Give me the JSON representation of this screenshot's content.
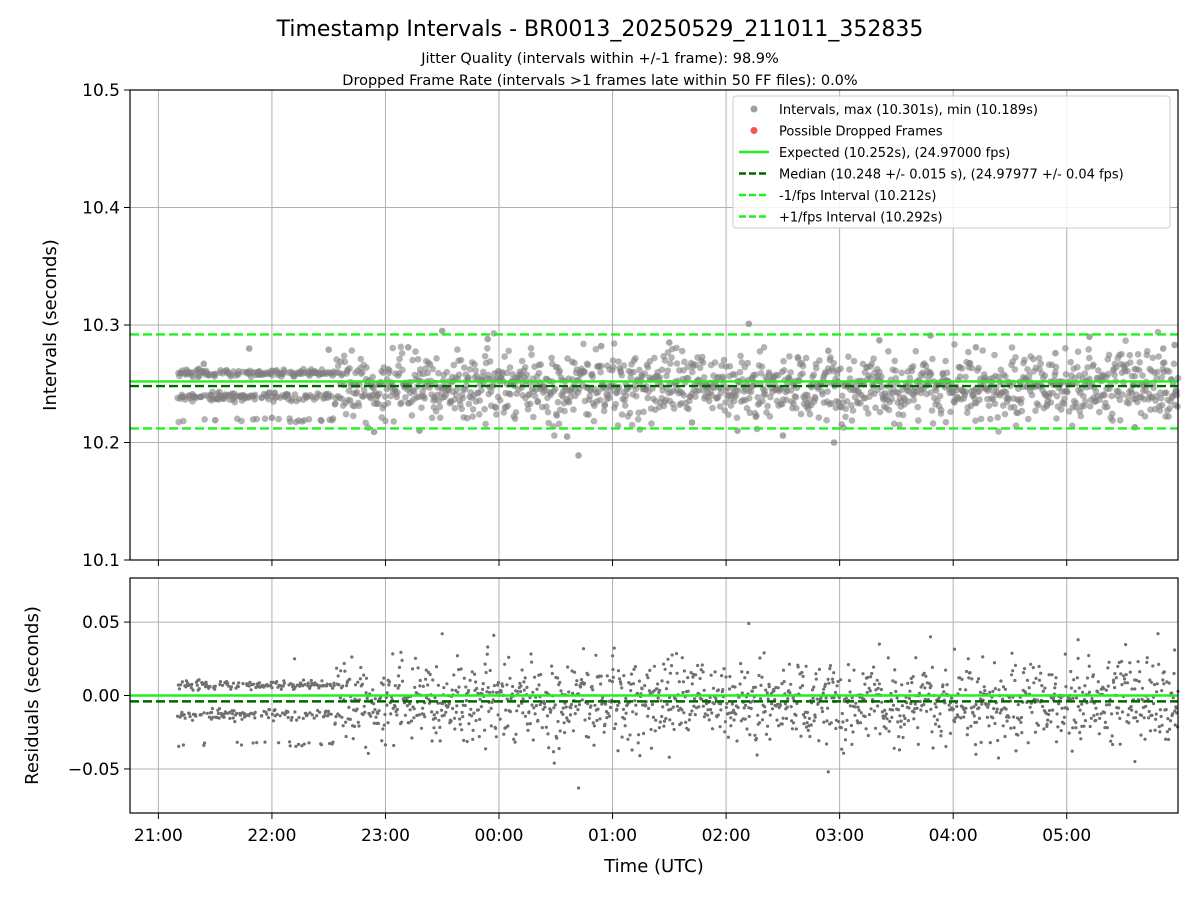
{
  "title": "Timestamp Intervals - BR0013_20250529_211011_352835",
  "subtitle_1": "Jitter Quality (intervals within +/-1 frame): 98.9%",
  "subtitle_2": "Dropped Frame Rate (intervals >1 frames late within 50 FF files): 0.0%",
  "colors": {
    "points": "#808080",
    "dropped": "#ee5555",
    "expected": "#22ee22",
    "median": "#006600",
    "interval_bounds": "#22ee22",
    "grid": "#b0b0b0"
  },
  "chart_data": [
    {
      "type": "scatter",
      "ylabel": "Intervals (seconds)",
      "ylim": [
        10.1,
        10.5
      ],
      "yticks": [
        "10.1",
        "10.2",
        "10.3",
        "10.4",
        "10.5"
      ],
      "xlim_hours": [
        20.75,
        29.98
      ],
      "grid": true,
      "legend_placement": "top-right",
      "legend": [
        {
          "label": "Intervals, max (10.301s), min (10.189s)",
          "kind": "marker",
          "color": "#a0a0a0"
        },
        {
          "label": "Possible Dropped Frames",
          "kind": "marker",
          "color": "#ee5555"
        },
        {
          "label": "Expected (10.252s), (24.97000 fps)",
          "kind": "solid",
          "color": "#22ee22"
        },
        {
          "label": "Median (10.248 +/- 0.015 s), (24.97977 +/- 0.04 fps)",
          "kind": "dashed",
          "color": "#006600"
        },
        {
          "label": "-1/fps Interval (10.212s)",
          "kind": "dashed",
          "color": "#22ee22"
        },
        {
          "label": "+1/fps Interval (10.292s)",
          "kind": "dashed",
          "color": "#22ee22"
        }
      ],
      "hlines": [
        {
          "name": "Expected",
          "y": 10.252,
          "style": "solid",
          "color": "#22ee22"
        },
        {
          "name": "Median",
          "y": 10.248,
          "style": "dashed",
          "color": "#006600"
        },
        {
          "name": "-1/fps Interval",
          "y": 10.212,
          "style": "dashed",
          "color": "#22ee22"
        },
        {
          "name": "+1/fps Interval",
          "y": 10.292,
          "style": "dashed",
          "color": "#22ee22"
        }
      ],
      "series_summary": {
        "max": 10.301,
        "min": 10.189,
        "x_start_hours": 21.17,
        "x_end_hours": 29.98
      },
      "points": [
        [
          21.2,
          10.259
        ],
        [
          21.3,
          10.241
        ],
        [
          21.4,
          10.267
        ],
        [
          21.5,
          10.219
        ],
        [
          21.8,
          10.28
        ],
        [
          22.0,
          10.221
        ],
        [
          22.5,
          10.279
        ],
        [
          22.9,
          10.209
        ],
        [
          23.2,
          10.281
        ],
        [
          23.3,
          10.21
        ],
        [
          23.5,
          10.295
        ],
        [
          23.9,
          10.288
        ],
        [
          24.6,
          10.205
        ],
        [
          24.7,
          10.189
        ],
        [
          24.9,
          10.282
        ],
        [
          25.5,
          10.285
        ],
        [
          25.7,
          10.217
        ],
        [
          26.1,
          10.21
        ],
        [
          26.2,
          10.301
        ],
        [
          26.5,
          10.206
        ],
        [
          26.9,
          10.278
        ],
        [
          26.95,
          10.2
        ],
        [
          27.35,
          10.287
        ],
        [
          27.8,
          10.291
        ],
        [
          28.2,
          10.281
        ],
        [
          28.9,
          10.276
        ],
        [
          29.2,
          10.29
        ],
        [
          29.6,
          10.213
        ],
        [
          29.85,
          10.28
        ],
        [
          29.95,
          10.283
        ]
      ]
    },
    {
      "type": "scatter",
      "xlabel": "Time (UTC)",
      "ylabel": "Residuals (seconds)",
      "ylim": [
        -0.08,
        0.08
      ],
      "yticks": [
        "−0.05",
        "0.00",
        "0.05"
      ],
      "ytick_values": [
        -0.05,
        0.0,
        0.05
      ],
      "xticks": [
        "21:00",
        "22:00",
        "23:00",
        "00:00",
        "01:00",
        "02:00",
        "03:00",
        "04:00",
        "05:00"
      ],
      "xtick_hours": [
        21,
        22,
        23,
        24,
        25,
        26,
        27,
        28,
        29
      ],
      "xlim_hours": [
        20.75,
        29.98
      ],
      "grid": true,
      "hlines": [
        {
          "name": "Expected",
          "y": 0.0,
          "style": "solid",
          "color": "#22ee22"
        },
        {
          "name": "Median",
          "y": -0.004,
          "style": "dashed",
          "color": "#006600"
        }
      ],
      "points": [
        [
          21.4,
          -0.034
        ],
        [
          22.2,
          0.025
        ],
        [
          23.5,
          0.042
        ],
        [
          23.9,
          0.033
        ],
        [
          24.7,
          -0.063
        ],
        [
          25.0,
          0.027
        ],
        [
          25.5,
          -0.042
        ],
        [
          26.2,
          0.049
        ],
        [
          26.9,
          -0.052
        ],
        [
          27.35,
          0.035
        ],
        [
          27.8,
          0.04
        ],
        [
          28.2,
          -0.04
        ],
        [
          29.1,
          0.038
        ],
        [
          29.6,
          -0.045
        ],
        [
          29.95,
          0.031
        ]
      ]
    }
  ]
}
